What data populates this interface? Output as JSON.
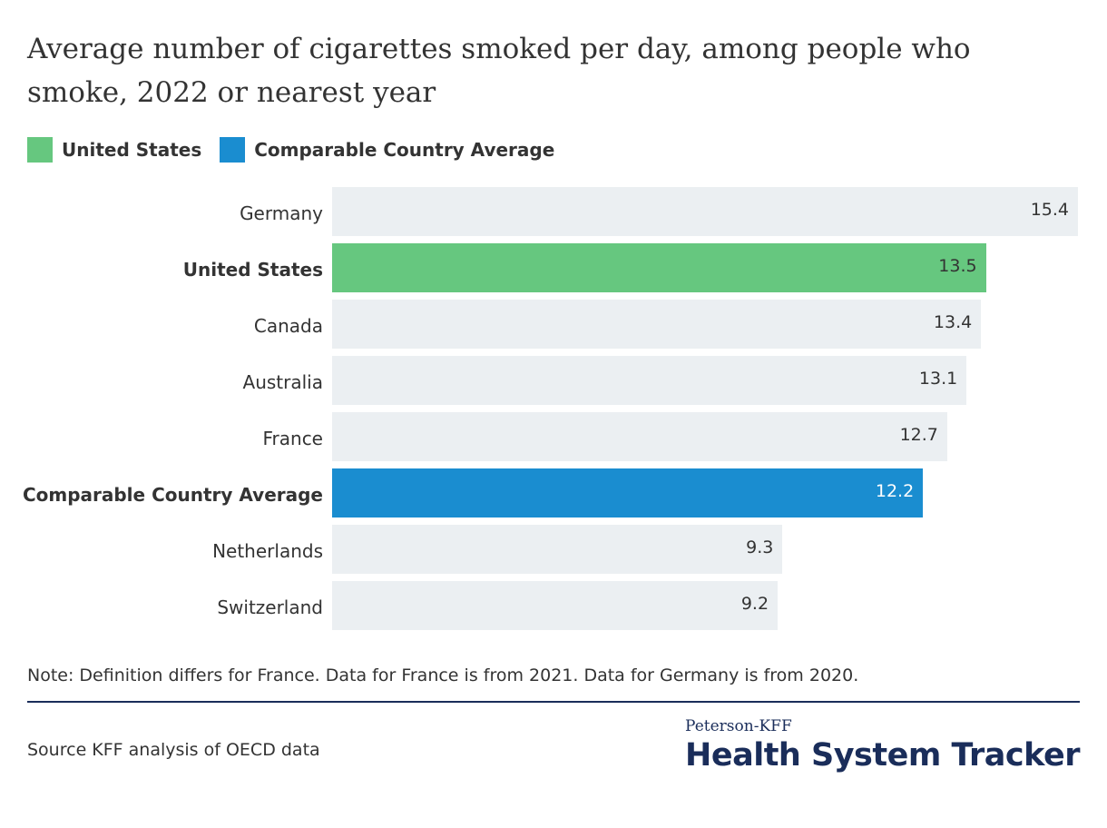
{
  "title": "Average number of cigarettes smoked per day, among people who smoke, 2022 or nearest year",
  "legend": [
    {
      "label": "United States",
      "color": "#66c77f"
    },
    {
      "label": "Comparable Country Average",
      "color": "#1a8dd0"
    }
  ],
  "chart_data": {
    "type": "bar",
    "orientation": "horizontal",
    "title": "Average number of cigarettes smoked per day, among people who smoke, 2022 or nearest year",
    "categories": [
      "Germany",
      "United States",
      "Canada",
      "Australia",
      "France",
      "Comparable Country Average",
      "Netherlands",
      "Switzerland"
    ],
    "values": [
      15.4,
      13.5,
      13.4,
      13.1,
      12.7,
      12.2,
      9.3,
      9.2
    ],
    "value_labels": [
      "15.4",
      "13.5",
      "13.4",
      "13.1",
      "12.7",
      "12.2",
      "9.3",
      "9.2"
    ],
    "highlight": {
      "United States": "#66c77f",
      "Comparable Country Average": "#1a8dd0"
    },
    "default_color": "#ebeff2",
    "xlim": [
      0,
      15.4
    ],
    "grid": false,
    "legend_position": "top-left"
  },
  "note": "Note: Definition differs for France. Data for France is from 2021. Data for Germany is from 2020.",
  "source": "Source KFF analysis of OECD data",
  "logo": {
    "top": "Peterson-KFF",
    "main": "Health System Tracker"
  }
}
